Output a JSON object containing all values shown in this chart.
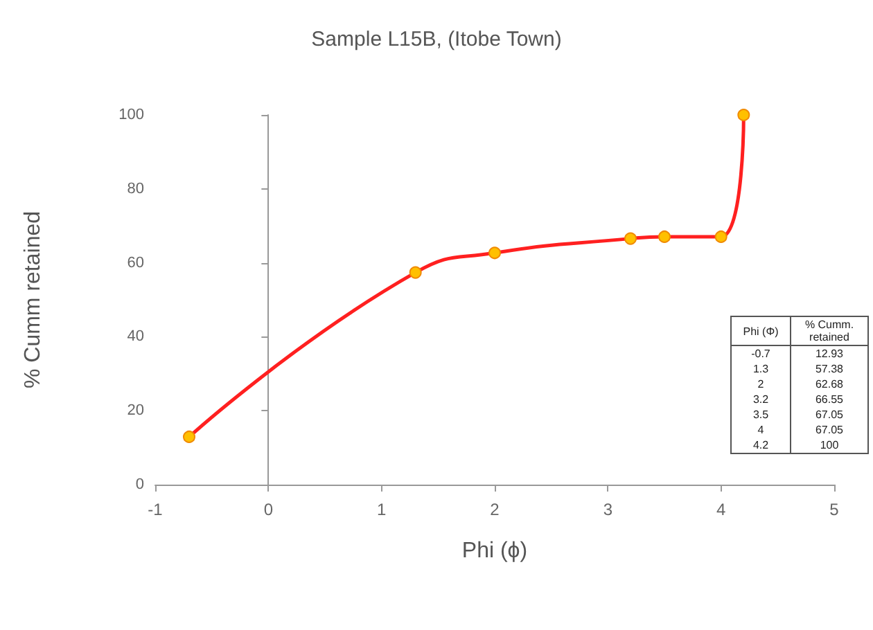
{
  "chart_data": [
    {
      "type": "line",
      "title": "Sample L15B, (Itobe Town)",
      "xlabel": "Phi (ϕ)",
      "ylabel": "% Cumm retained",
      "x": [
        -0.7,
        1.3,
        2,
        3.2,
        3.5,
        4,
        4.2
      ],
      "series": [
        {
          "color": "#ff2020",
          "colors": [
            "#ffc000",
            "#ffc000",
            "#ffc000",
            "#ffc000",
            "#ffc000",
            "#ffc000",
            "#ffc000"
          ],
          "values": [
            12.93,
            57.38,
            62.68,
            66.55,
            67.05,
            67.05,
            100
          ]
        }
      ],
      "xlim": [
        -1,
        5
      ],
      "xticks": [
        -1,
        0,
        1,
        2,
        3,
        4,
        5
      ],
      "ylim": [
        0,
        100
      ],
      "yticks": [
        0,
        20,
        40,
        60,
        80,
        100
      ],
      "marker": "circle",
      "line_style": "solid"
    },
    {
      "type": "other",
      "annotations": [
        "Phi (Φ)",
        "% Cumm. retained",
        "-0.7",
        "12.93",
        "1.3",
        "57.38",
        "2",
        "62.68",
        "3.2",
        "66.55",
        "3.5",
        "67.05",
        "4",
        "67.05",
        "4.2",
        "100"
      ]
    }
  ]
}
